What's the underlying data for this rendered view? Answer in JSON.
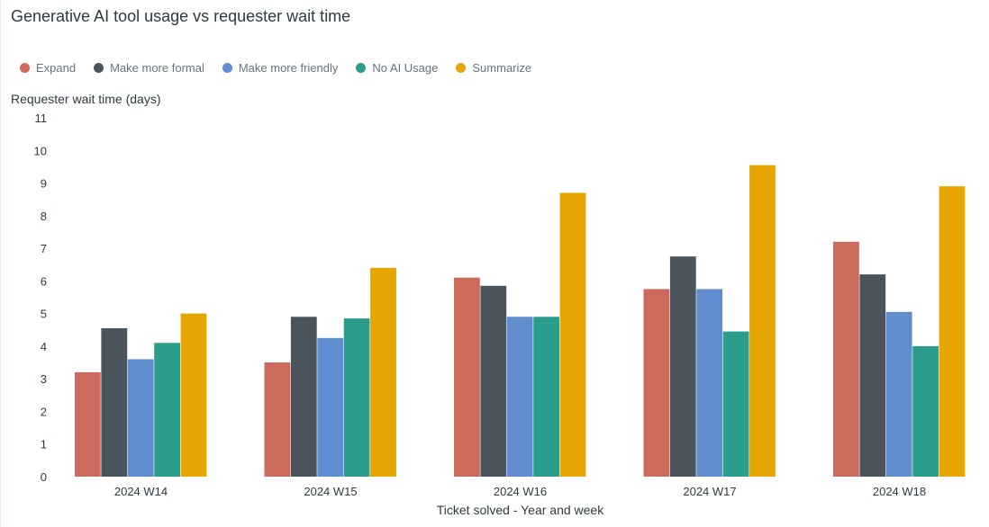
{
  "chart_data": {
    "type": "bar",
    "title": "Generative AI tool usage vs requester wait time",
    "ylabel": "Requester wait time (days)",
    "xlabel": "Ticket solved - Year and week",
    "categories": [
      "2024 W14",
      "2024 W15",
      "2024 W16",
      "2024 W17",
      "2024 W18"
    ],
    "ylim": [
      0,
      11
    ],
    "yticks": [
      0,
      1,
      2,
      3,
      4,
      5,
      6,
      7,
      8,
      9,
      10,
      11
    ],
    "grid": false,
    "legend_position": "top-left",
    "series": [
      {
        "name": "Expand",
        "color": "#cc6a5c",
        "values": [
          3.2,
          3.5,
          6.1,
          5.75,
          7.2
        ]
      },
      {
        "name": "Make more formal",
        "color": "#49545c",
        "values": [
          4.55,
          4.9,
          5.85,
          6.75,
          6.2
        ]
      },
      {
        "name": "Make more friendly",
        "color": "#5f8dd0",
        "values": [
          3.6,
          4.25,
          4.9,
          5.75,
          5.05
        ]
      },
      {
        "name": "No AI Usage",
        "color": "#2a9d8c",
        "values": [
          4.1,
          4.85,
          4.9,
          4.45,
          4.0
        ]
      },
      {
        "name": "Summarize",
        "color": "#e6a500",
        "values": [
          5.0,
          6.4,
          8.7,
          9.55,
          8.9
        ]
      }
    ]
  }
}
